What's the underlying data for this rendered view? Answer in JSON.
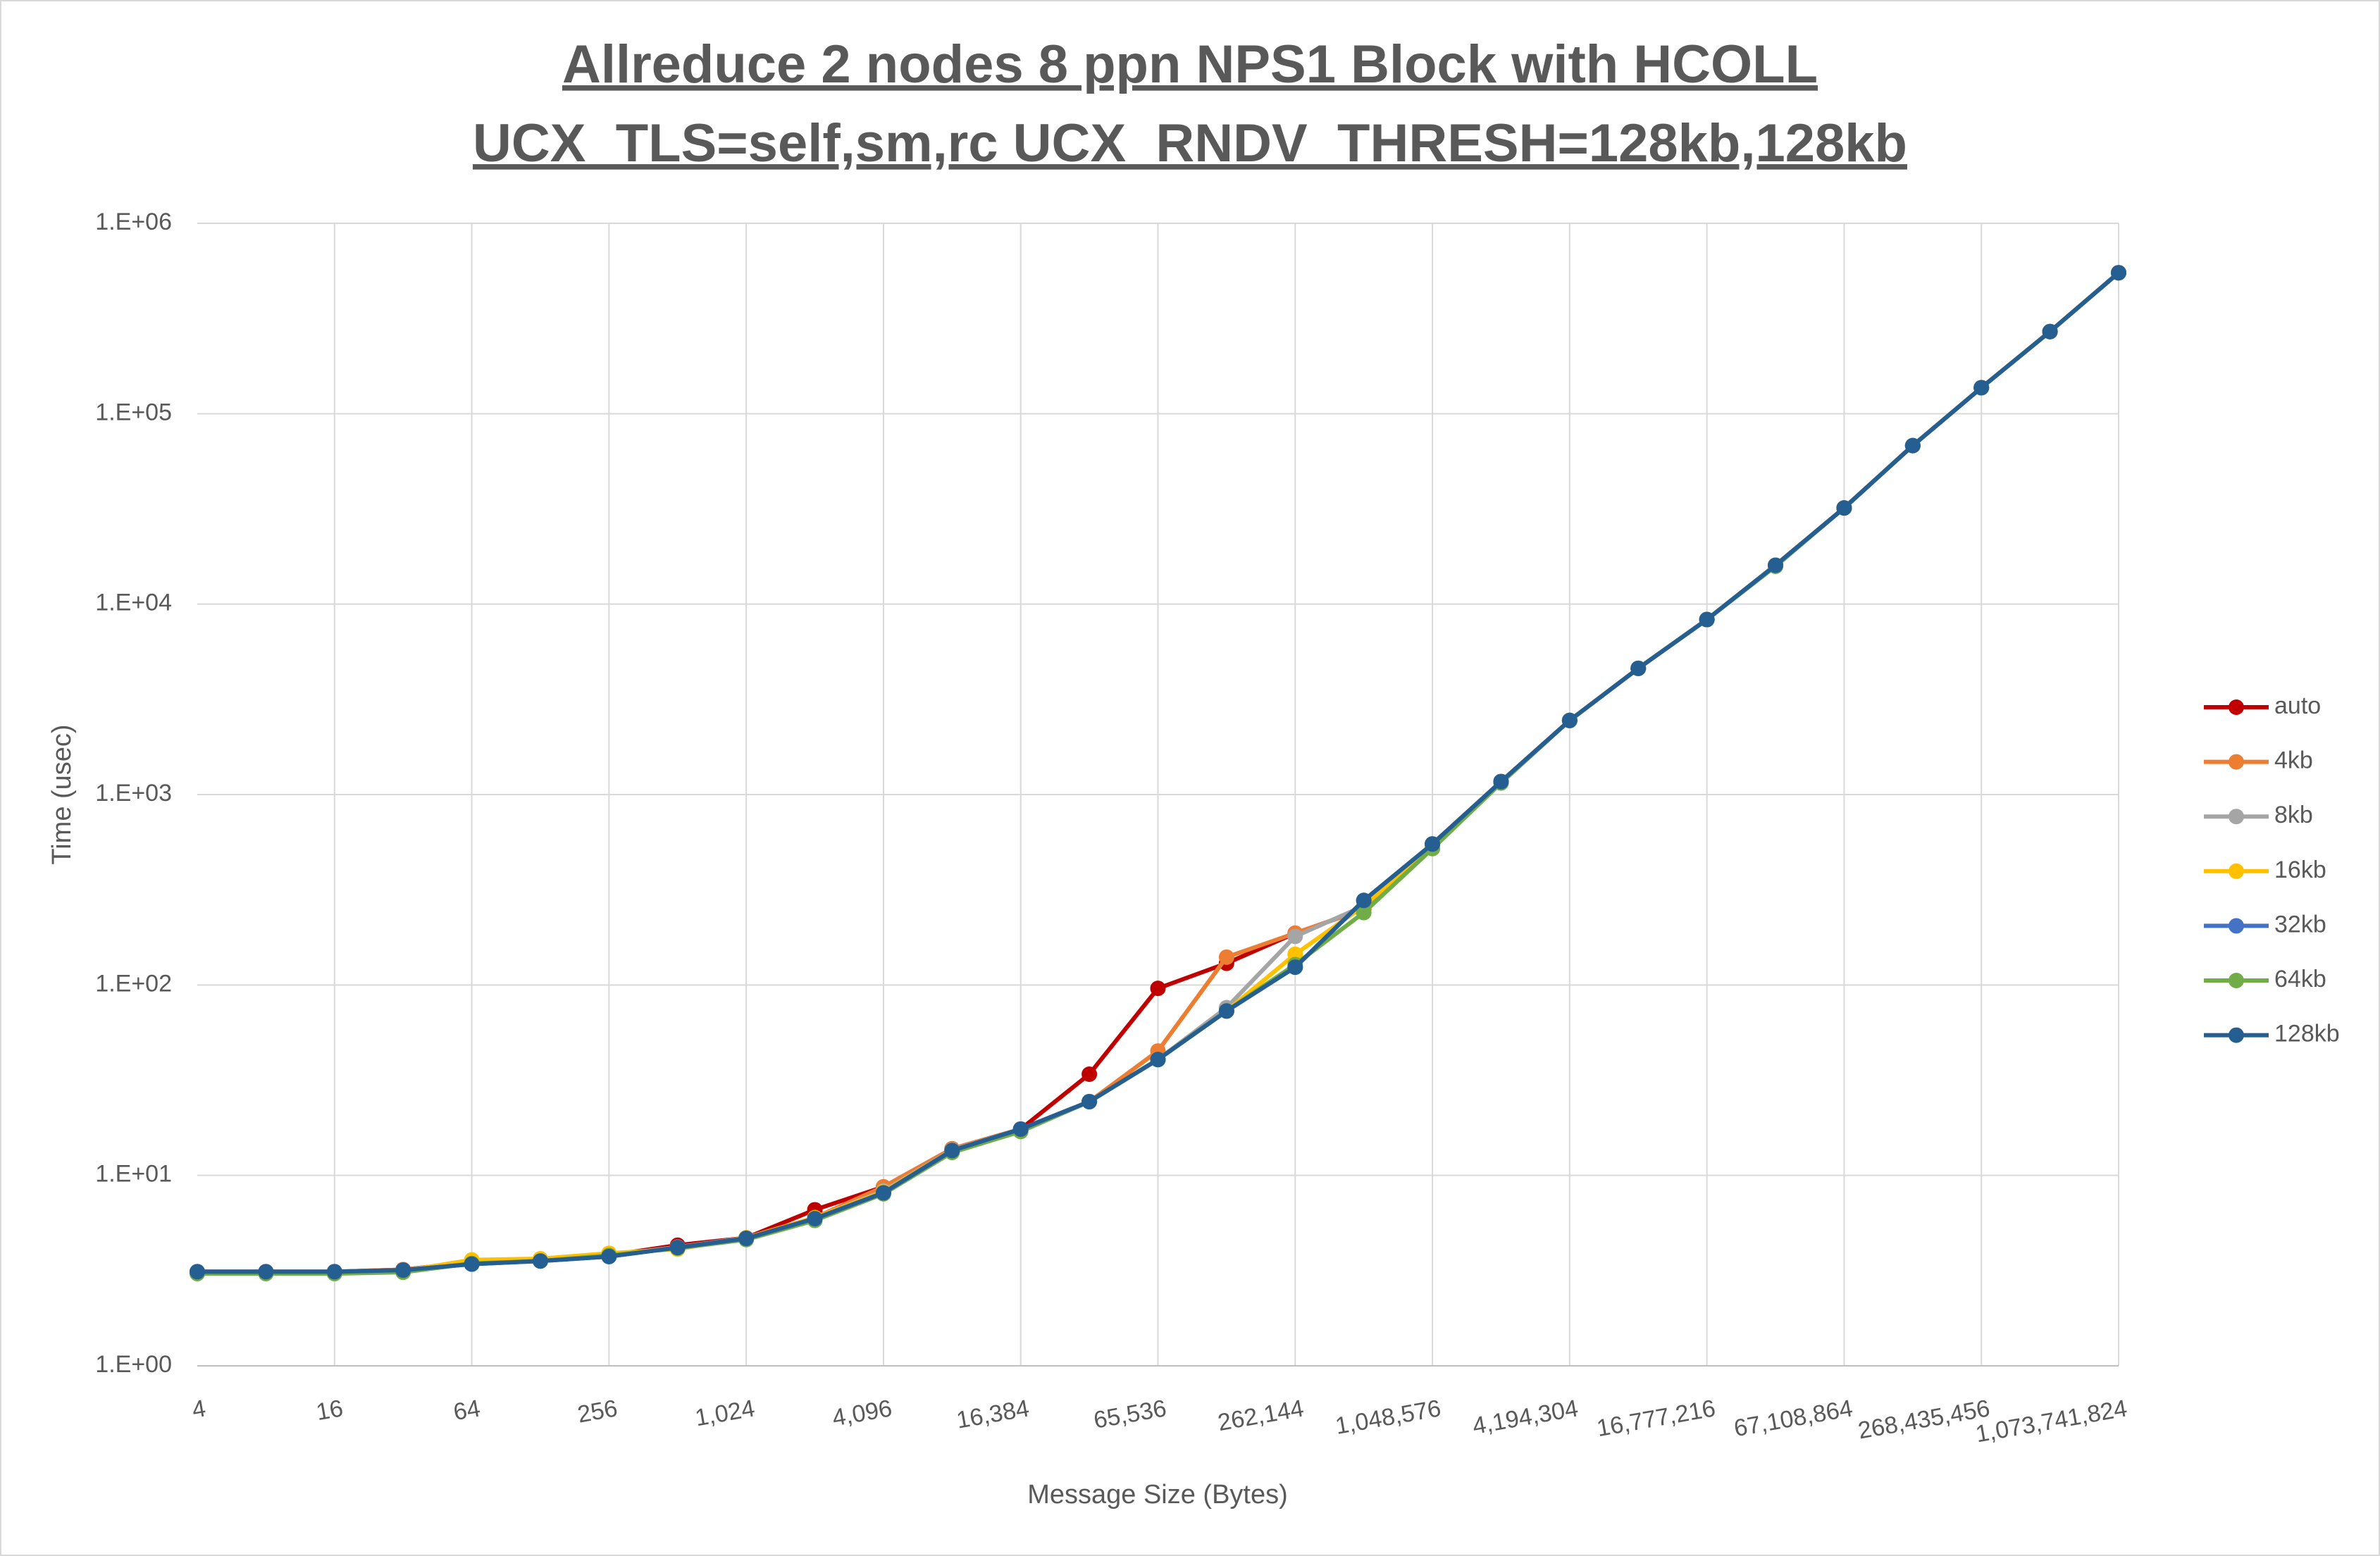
{
  "chart_data": {
    "type": "line",
    "title": "Allreduce 2 nodes 8 ppn NPS1 Block with HCOLL",
    "subtitle": "UCX_TLS=self,sm,rc UCX_RNDV_THRESH=128kb,128kb",
    "x_label": "Message Size (Bytes)",
    "y_label": "Time (usec)",
    "log_y": true,
    "grid": true,
    "legend": "right",
    "categories": [
      "4",
      null,
      "16",
      null,
      "64",
      null,
      "256",
      null,
      "1,024",
      null,
      "4,096",
      null,
      "16,384",
      null,
      "65,536",
      null,
      "262,144",
      null,
      "1,048,576",
      null,
      "4,194,304",
      null,
      "16,777,216",
      null,
      "67,108,864",
      null,
      "268,435,456",
      null,
      "1,073,741,824"
    ],
    "ylim": [
      1,
      1000000
    ],
    "yticks": [
      {
        "value": 1,
        "label": "1.E+00"
      },
      {
        "value": 10,
        "label": "1.E+01"
      },
      {
        "value": 100,
        "label": "1.E+02"
      },
      {
        "value": 1000,
        "label": "1.E+03"
      },
      {
        "value": 10000,
        "label": "1.E+04"
      },
      {
        "value": 100000,
        "label": "1.E+05"
      },
      {
        "value": 1000000,
        "label": "1.E+06"
      }
    ],
    "series": [
      {
        "name": "auto",
        "color": "#c00000",
        "values": [
          3.12,
          3.12,
          3.12,
          3.2,
          3.5,
          3.6,
          3.8,
          4.3,
          4.7,
          6.6,
          8.7,
          13.8,
          17.5,
          34,
          96,
          130,
          187,
          250,
          550,
          1170,
          2450,
          4600,
          8300,
          16000,
          32000,
          68000,
          137000,
          270000,
          550000
        ]
      },
      {
        "name": "4kb",
        "color": "#ed7d31",
        "values": [
          3.12,
          3.12,
          3.12,
          3.2,
          3.5,
          3.6,
          3.8,
          4.2,
          4.7,
          6.0,
          8.7,
          13.8,
          17.5,
          24.4,
          45,
          140,
          187,
          250,
          550,
          1170,
          2450,
          4600,
          8300,
          16000,
          32000,
          68000,
          137000,
          270000,
          550000
        ]
      },
      {
        "name": "8kb",
        "color": "#a5a5a5",
        "values": [
          3.12,
          3.12,
          3.12,
          3.18,
          3.5,
          3.6,
          3.8,
          4.2,
          4.7,
          6.0,
          8.3,
          13.6,
          17.5,
          24.4,
          40.6,
          76,
          180,
          260,
          550,
          1170,
          2450,
          4600,
          8300,
          16000,
          32000,
          68000,
          137000,
          270000,
          550000
        ]
      },
      {
        "name": "16kb",
        "color": "#ffc000",
        "values": [
          3.1,
          3.1,
          3.1,
          3.15,
          3.6,
          3.65,
          3.9,
          4.1,
          4.7,
          6.0,
          8.2,
          13.5,
          17.3,
          24.4,
          40.6,
          73,
          145,
          260,
          540,
          1170,
          2450,
          4600,
          8300,
          16000,
          32000,
          68000,
          137000,
          270000,
          550000
        ]
      },
      {
        "name": "32kb",
        "color": "#4472c4",
        "values": [
          3.12,
          3.12,
          3.12,
          3.18,
          3.42,
          3.55,
          3.75,
          4.18,
          4.67,
          5.93,
          8.1,
          13.5,
          17.5,
          24.4,
          40.6,
          73,
          124,
          278,
          550,
          1170,
          2450,
          4600,
          8300,
          16000,
          32000,
          68000,
          137000,
          270000,
          550000
        ]
      },
      {
        "name": "64kb",
        "color": "#70ad47",
        "values": [
          3.05,
          3.05,
          3.05,
          3.1,
          3.45,
          3.55,
          3.8,
          4.15,
          4.6,
          5.8,
          8.0,
          13.2,
          17.0,
          24.4,
          40.6,
          73,
          128,
          240,
          520,
          1150,
          2450,
          4600,
          8300,
          15800,
          32000,
          68000,
          137000,
          270000,
          550000
        ]
      },
      {
        "name": "128kb",
        "color": "#255e91",
        "values": [
          3.12,
          3.12,
          3.12,
          3.18,
          3.42,
          3.55,
          3.75,
          4.18,
          4.67,
          5.93,
          8.1,
          13.5,
          17.5,
          24.4,
          40.6,
          73,
          124,
          278,
          550,
          1170,
          2450,
          4600,
          8300,
          16000,
          32000,
          68000,
          137000,
          270000,
          550000
        ]
      }
    ]
  }
}
